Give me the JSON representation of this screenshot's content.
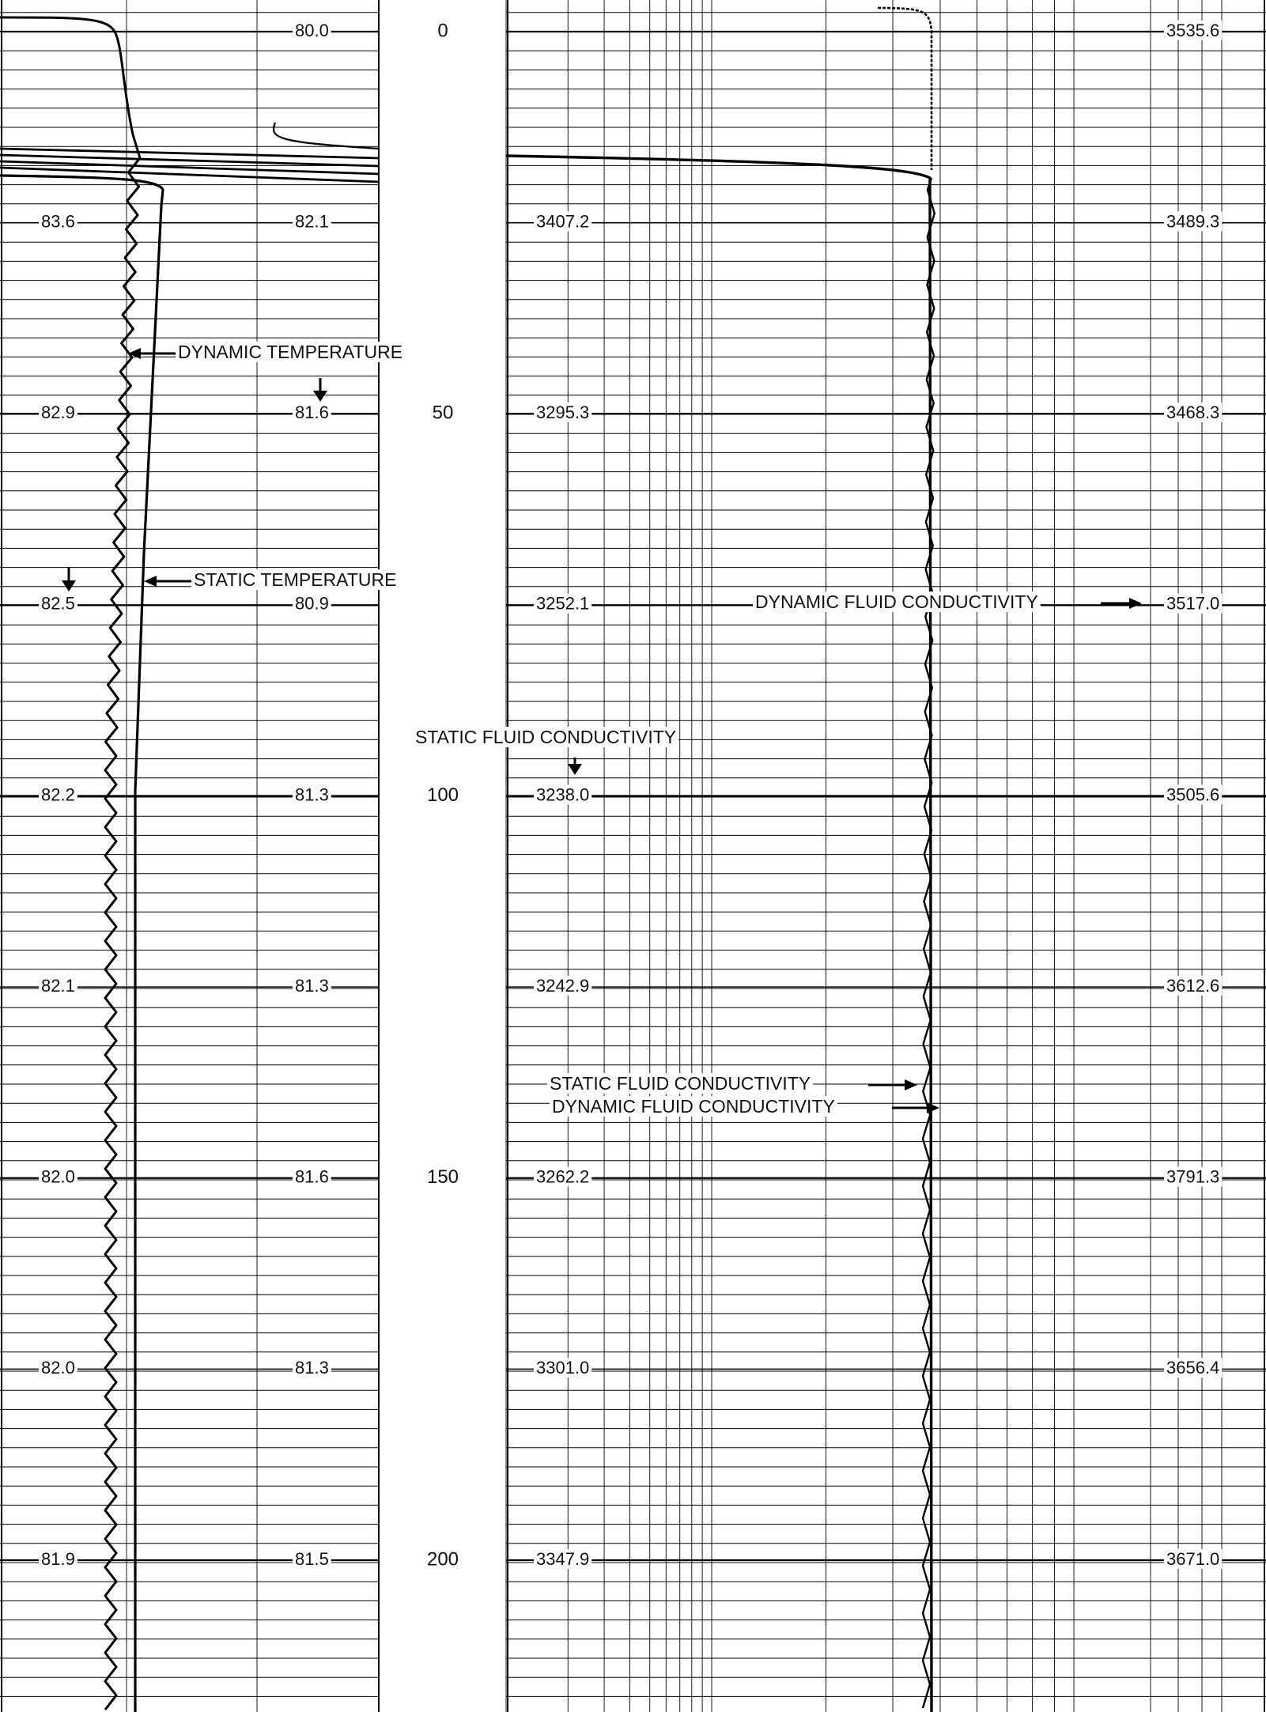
{
  "chart_data": [
    {
      "type": "line",
      "track": "temperature",
      "depth_ticks": [
        0,
        50,
        100,
        150,
        200
      ],
      "scale_labels_left": [
        {
          "depth": 25,
          "text": "83.6"
        },
        {
          "depth": 50,
          "text": "82.9"
        },
        {
          "depth": 75,
          "text": "82.5"
        },
        {
          "depth": 100,
          "text": "82.2"
        },
        {
          "depth": 125,
          "text": "82.1"
        },
        {
          "depth": 150,
          "text": "82.0"
        },
        {
          "depth": 175,
          "text": "82.0"
        },
        {
          "depth": 200,
          "text": "81.9"
        }
      ],
      "scale_labels_right": [
        {
          "depth": 0,
          "text": "80.0"
        },
        {
          "depth": 25,
          "text": "82.1"
        },
        {
          "depth": 50,
          "text": "81.6"
        },
        {
          "depth": 75,
          "text": "80.9"
        },
        {
          "depth": 100,
          "text": "81.3"
        },
        {
          "depth": 125,
          "text": "81.3"
        },
        {
          "depth": 150,
          "text": "81.6"
        },
        {
          "depth": 175,
          "text": "81.3"
        },
        {
          "depth": 200,
          "text": "81.5"
        }
      ],
      "annotations": [
        {
          "text": "DYNAMIC TEMPERATURE",
          "depth": 42.5
        },
        {
          "text": "STATIC TEMPERATURE",
          "depth": 72.5
        }
      ],
      "series": [
        {
          "name": "DYNAMIC TEMPERATURE",
          "style": "wavy"
        },
        {
          "name": "STATIC TEMPERATURE",
          "style": "solid"
        }
      ]
    },
    {
      "type": "line",
      "track": "fluid conductivity",
      "scale_labels_left": [
        {
          "depth": 25,
          "text": "3407.2"
        },
        {
          "depth": 50,
          "text": "3295.3"
        },
        {
          "depth": 75,
          "text": "3252.1"
        },
        {
          "depth": 100,
          "text": "3238.0"
        },
        {
          "depth": 125,
          "text": "3242.9"
        },
        {
          "depth": 150,
          "text": "3262.2"
        },
        {
          "depth": 175,
          "text": "3301.0"
        },
        {
          "depth": 200,
          "text": "3347.9"
        }
      ],
      "scale_labels_right": [
        {
          "depth": 0,
          "text": "3535.6"
        },
        {
          "depth": 25,
          "text": "3489.3"
        },
        {
          "depth": 50,
          "text": "3468.3"
        },
        {
          "depth": 75,
          "text": "3517.0"
        },
        {
          "depth": 100,
          "text": "3505.6"
        },
        {
          "depth": 125,
          "text": "3612.6"
        },
        {
          "depth": 150,
          "text": "3791.3"
        },
        {
          "depth": 175,
          "text": "3656.4"
        },
        {
          "depth": 200,
          "text": "3671.0"
        }
      ],
      "annotations": [
        {
          "text": "DYNAMIC FLUID CONDUCTIVITY",
          "depth": 75
        },
        {
          "text": "STATIC FLUID CONDUCTIVITY",
          "depth": 92.5
        },
        {
          "text": "STATIC FLUID CONDUCTIVITY",
          "depth": 138
        },
        {
          "text": "DYNAMIC FLUID CONDUCTIVITY",
          "depth": 141
        }
      ],
      "series": [
        {
          "name": "STATIC FLUID CONDUCTIVITY",
          "style": "solid"
        },
        {
          "name": "DYNAMIC FLUID CONDUCTIVITY",
          "style": "wavy"
        }
      ]
    }
  ]
}
